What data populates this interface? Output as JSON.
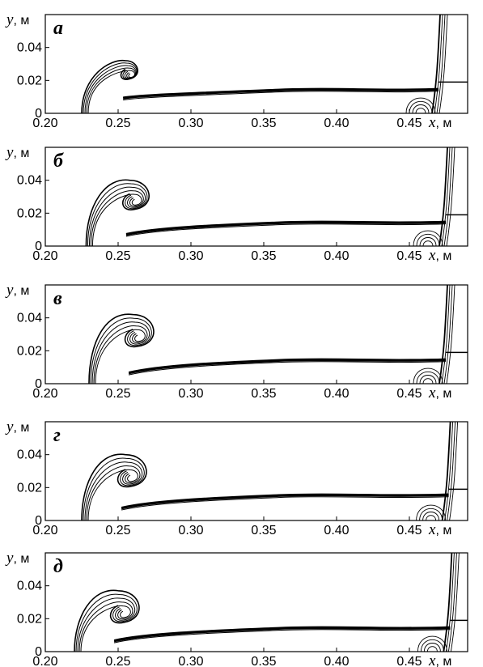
{
  "chart_data": [
    {
      "type": "line",
      "panel_label": "а",
      "xlabel": "x",
      "xunit": "м",
      "ylabel": "y",
      "yunit": "м",
      "xticks": [
        "0.20",
        "0.25",
        "0.30",
        "0.35",
        "0.40",
        "0.45"
      ],
      "yticks": [
        "0",
        "0.02",
        "0.04"
      ],
      "xlim": [
        0.2,
        0.49
      ],
      "ylim": [
        0,
        0.06
      ],
      "vortex": {
        "x": 0.255,
        "y": 0.025,
        "r": 0.007
      },
      "interface_y": 0.013,
      "shock_x": 0.47
    },
    {
      "type": "line",
      "panel_label": "б",
      "xlabel": "x",
      "xunit": "м",
      "ylabel": "y",
      "yunit": "м",
      "xticks": [
        "0.20",
        "0.25",
        "0.30",
        "0.35",
        "0.40",
        "0.45"
      ],
      "yticks": [
        "0",
        "0.02",
        "0.04"
      ],
      "xlim": [
        0.2,
        0.49
      ],
      "ylim": [
        0,
        0.06
      ],
      "vortex": {
        "x": 0.258,
        "y": 0.029,
        "r": 0.011
      },
      "interface_y": 0.013,
      "shock_x": 0.475
    },
    {
      "type": "line",
      "panel_label": "в",
      "xlabel": "x",
      "xunit": "м",
      "ylabel": "y",
      "yunit": "м",
      "xticks": [
        "0.20",
        "0.25",
        "0.30",
        "0.35",
        "0.40",
        "0.45"
      ],
      "yticks": [
        "0",
        "0.02",
        "0.04"
      ],
      "xlim": [
        0.2,
        0.49
      ],
      "ylim": [
        0,
        0.06
      ],
      "vortex": {
        "x": 0.26,
        "y": 0.03,
        "r": 0.012
      },
      "interface_y": 0.013,
      "shock_x": 0.475
    },
    {
      "type": "line",
      "panel_label": "г",
      "xlabel": "x",
      "xunit": "м",
      "ylabel": "y",
      "yunit": "м",
      "xticks": [
        "0.20",
        "0.25",
        "0.30",
        "0.35",
        "0.40",
        "0.45"
      ],
      "yticks": [
        "0",
        "0.02",
        "0.04"
      ],
      "xlim": [
        0.2,
        0.49
      ],
      "ylim": [
        0,
        0.06
      ],
      "vortex": {
        "x": 0.255,
        "y": 0.028,
        "r": 0.012
      },
      "interface_y": 0.014,
      "shock_x": 0.477
    },
    {
      "type": "line",
      "panel_label": "д",
      "xlabel": "x",
      "xunit": "м",
      "ylabel": "y",
      "yunit": "м",
      "xticks": [
        "0.20",
        "0.25",
        "0.30",
        "0.35",
        "0.40",
        "0.45"
      ],
      "yticks": [
        "0",
        "0.02",
        "0.04"
      ],
      "xlim": [
        0.2,
        0.49
      ],
      "ylim": [
        0,
        0.06
      ],
      "vortex": {
        "x": 0.25,
        "y": 0.025,
        "r": 0.012
      },
      "interface_y": 0.013,
      "shock_x": 0.478
    }
  ]
}
